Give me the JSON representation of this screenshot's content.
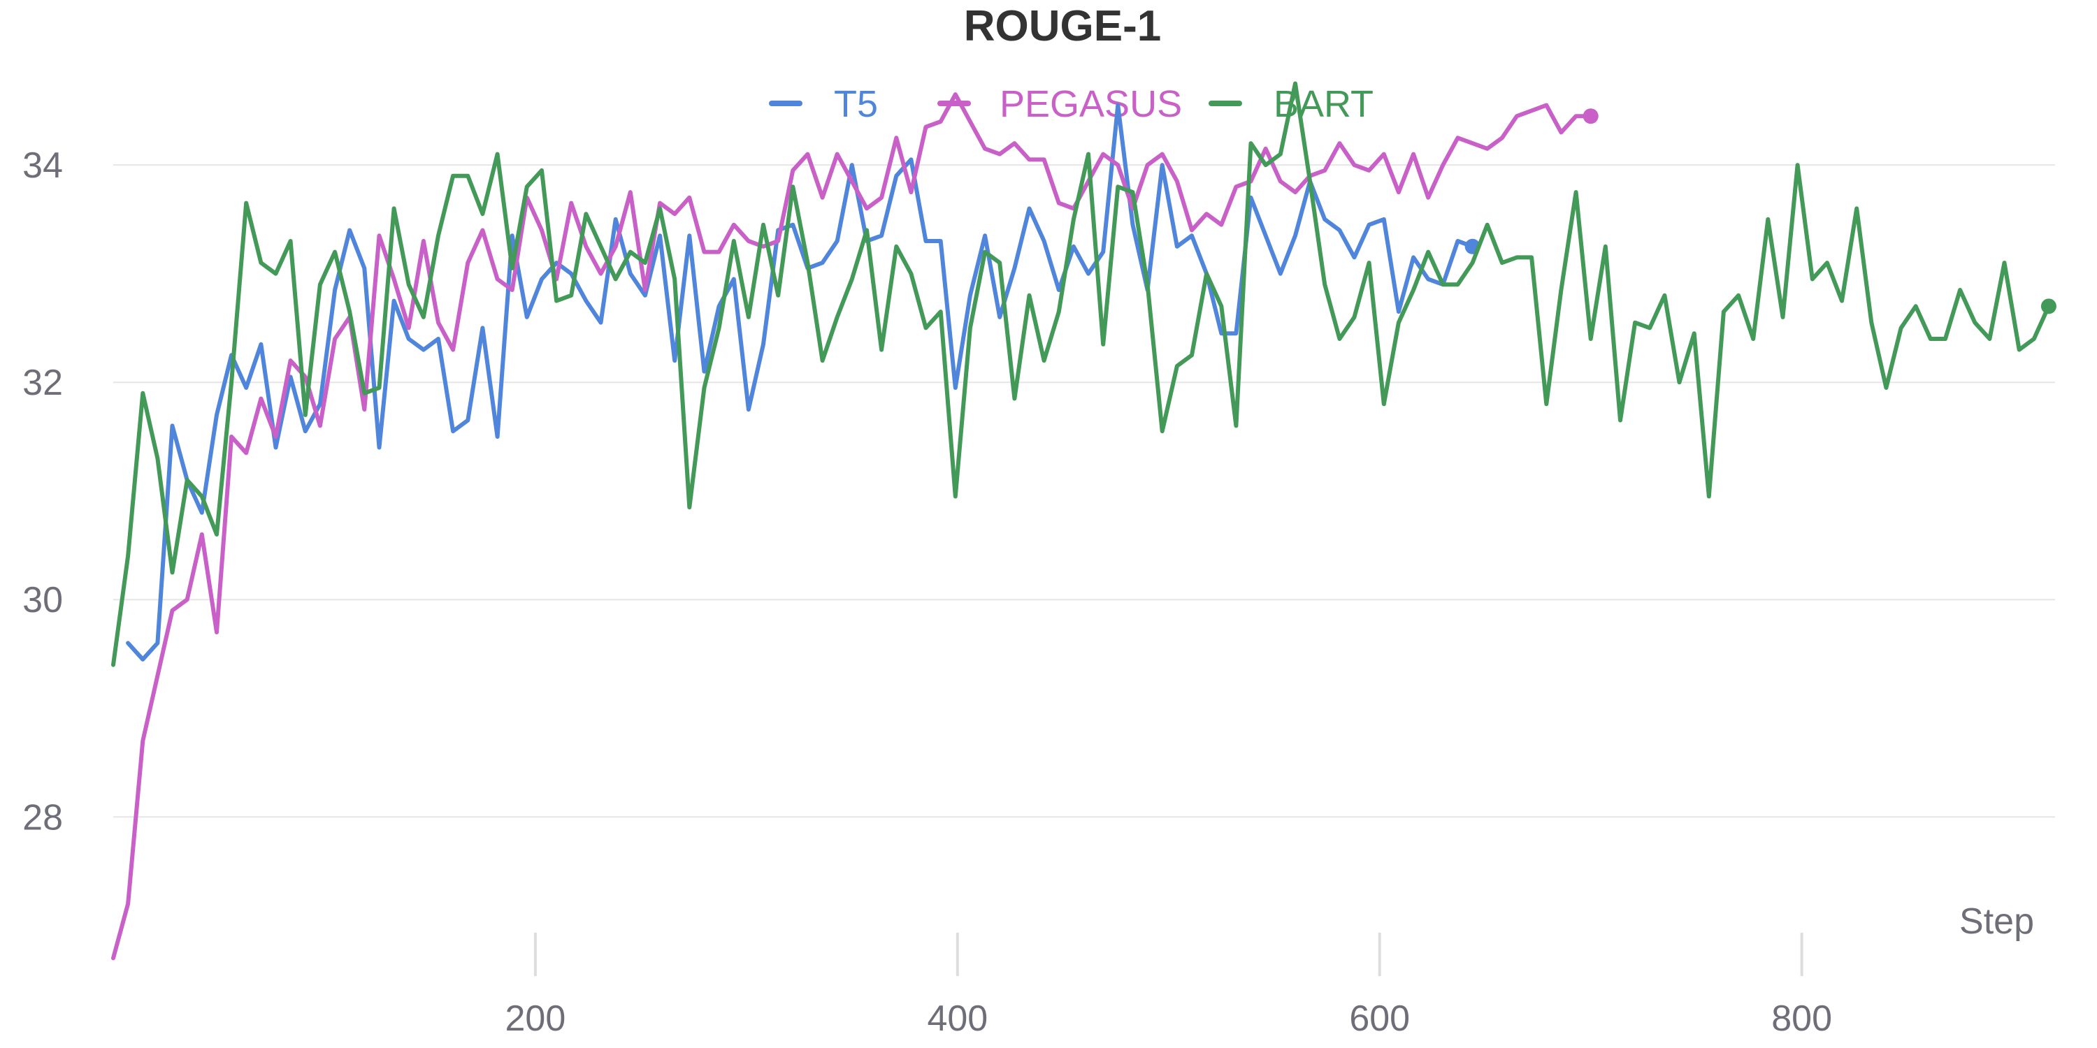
{
  "chart_data": {
    "type": "line",
    "title": "ROUGE-1",
    "xlabel": "Step",
    "ylabel": "",
    "xlim": [
      0,
      920
    ],
    "ylim": [
      26.6,
      35.3
    ],
    "xticks": [
      200,
      400,
      600,
      800
    ],
    "yticks": [
      28,
      30,
      32,
      34
    ],
    "grid": true,
    "legend_position": "top-center",
    "series": [
      {
        "name": "T5",
        "color": "#5085dc",
        "x": [
          7,
          14,
          21,
          28,
          35,
          42,
          49,
          56,
          63,
          70,
          77,
          84,
          91,
          98,
          105,
          112,
          119,
          126,
          133,
          140,
          147,
          154,
          161,
          168,
          175,
          182,
          189,
          196,
          203,
          210,
          217,
          224,
          231,
          238,
          245,
          252,
          259,
          266,
          273,
          280,
          287,
          294,
          301,
          308,
          315,
          322,
          329,
          336,
          343,
          350,
          357,
          364,
          371,
          378,
          385,
          392,
          399,
          406,
          413,
          420,
          427,
          434,
          441,
          448,
          455,
          462,
          469,
          476,
          483,
          490,
          497,
          504,
          511,
          518,
          525,
          532,
          539,
          546,
          553,
          560,
          567,
          574,
          581,
          588,
          595,
          602,
          609,
          616,
          623,
          630,
          637,
          644
        ],
        "y": [
          29.6,
          29.45,
          29.6,
          31.6,
          31.1,
          30.8,
          31.7,
          32.25,
          31.95,
          32.35,
          31.4,
          32.05,
          31.55,
          31.8,
          32.85,
          33.4,
          33.05,
          31.4,
          32.75,
          32.4,
          32.3,
          32.4,
          31.55,
          31.65,
          32.5,
          31.5,
          33.35,
          32.6,
          32.95,
          33.1,
          33.0,
          32.75,
          32.55,
          33.5,
          33.0,
          32.8,
          33.35,
          32.2,
          33.35,
          32.1,
          32.7,
          32.95,
          31.75,
          32.35,
          33.4,
          33.45,
          33.05,
          33.1,
          33.3,
          34.0,
          33.3,
          33.35,
          33.9,
          34.05,
          33.3,
          33.3,
          31.95,
          32.8,
          33.35,
          32.6,
          33.05,
          33.6,
          33.3,
          32.85,
          33.25,
          33.0,
          33.2,
          34.55,
          33.45,
          32.85,
          34.0,
          33.25,
          33.35,
          33.0,
          32.45,
          32.45,
          33.7,
          33.35,
          33.0,
          33.35,
          33.85,
          33.5,
          33.4,
          33.15,
          33.45,
          33.5,
          32.65,
          33.15,
          32.95,
          32.9,
          33.3,
          33.25
        ]
      },
      {
        "name": "PEGASUS",
        "color": "#c860c8",
        "x": [
          0,
          7,
          14,
          21,
          28,
          35,
          42,
          49,
          56,
          63,
          70,
          77,
          84,
          91,
          98,
          105,
          112,
          119,
          126,
          133,
          140,
          147,
          154,
          161,
          168,
          175,
          182,
          189,
          196,
          203,
          210,
          217,
          224,
          231,
          238,
          245,
          252,
          259,
          266,
          273,
          280,
          287,
          294,
          301,
          308,
          315,
          322,
          329,
          336,
          343,
          350,
          357,
          364,
          371,
          378,
          385,
          392,
          399,
          406,
          413,
          420,
          427,
          434,
          441,
          448,
          455,
          462,
          469,
          476,
          483,
          490,
          497,
          504,
          511,
          518,
          525,
          532,
          539,
          546,
          553,
          560,
          567,
          574,
          581,
          588,
          595,
          602,
          609,
          616,
          623,
          630,
          637,
          644,
          651,
          658,
          665,
          672,
          679,
          686,
          693,
          700
        ],
        "y": [
          26.7,
          27.2,
          28.7,
          29.3,
          29.9,
          30.0,
          30.6,
          29.7,
          31.5,
          31.35,
          31.85,
          31.5,
          32.2,
          32.05,
          31.6,
          32.4,
          32.6,
          31.75,
          33.35,
          32.95,
          32.5,
          33.3,
          32.55,
          32.3,
          33.1,
          33.4,
          32.95,
          32.85,
          33.7,
          33.4,
          32.95,
          33.65,
          33.25,
          33.0,
          33.25,
          33.75,
          32.85,
          33.65,
          33.55,
          33.7,
          33.2,
          33.2,
          33.45,
          33.3,
          33.25,
          33.3,
          33.95,
          34.1,
          33.7,
          34.1,
          33.85,
          33.6,
          33.7,
          34.25,
          33.75,
          34.35,
          34.4,
          34.65,
          34.4,
          34.15,
          34.1,
          34.2,
          34.05,
          34.05,
          33.65,
          33.6,
          33.85,
          34.1,
          34.0,
          33.6,
          34.0,
          34.1,
          33.85,
          33.4,
          33.55,
          33.45,
          33.8,
          33.85,
          34.15,
          33.85,
          33.75,
          33.9,
          33.95,
          34.2,
          34.0,
          33.95,
          34.1,
          33.75,
          34.1,
          33.7,
          34.0,
          34.25,
          34.2,
          34.15,
          34.25,
          34.45,
          34.5,
          34.55,
          34.3,
          34.45,
          34.45
        ]
      },
      {
        "name": "BART",
        "color": "#439a58",
        "x": [
          0,
          7,
          14,
          21,
          28,
          35,
          42,
          49,
          56,
          63,
          70,
          77,
          84,
          91,
          98,
          105,
          112,
          119,
          126,
          133,
          140,
          147,
          154,
          161,
          168,
          175,
          182,
          189,
          196,
          203,
          210,
          217,
          224,
          231,
          238,
          245,
          252,
          259,
          266,
          273,
          280,
          287,
          294,
          301,
          308,
          315,
          322,
          329,
          336,
          343,
          350,
          357,
          364,
          371,
          378,
          385,
          392,
          399,
          406,
          413,
          420,
          427,
          434,
          441,
          448,
          455,
          462,
          469,
          476,
          483,
          490,
          497,
          504,
          511,
          518,
          525,
          532,
          539,
          546,
          553,
          560,
          567,
          574,
          581,
          588,
          595,
          602,
          609,
          616,
          623,
          630,
          637,
          644,
          651,
          658,
          665,
          672,
          679,
          686,
          693,
          700,
          707,
          714,
          721,
          728,
          735,
          742,
          749,
          756,
          763,
          770,
          777,
          784,
          791,
          798,
          805,
          812,
          819,
          826,
          833,
          840,
          847,
          854,
          861,
          868,
          875,
          882,
          889,
          896,
          903,
          910,
          917
        ],
        "y": [
          29.4,
          30.4,
          31.9,
          31.3,
          30.25,
          31.1,
          30.95,
          30.6,
          32.0,
          33.65,
          33.1,
          33.0,
          33.3,
          31.7,
          32.9,
          33.2,
          32.65,
          31.9,
          31.95,
          33.6,
          32.9,
          32.6,
          33.35,
          33.9,
          33.9,
          33.55,
          34.1,
          33.05,
          33.8,
          33.95,
          32.75,
          32.8,
          33.55,
          33.25,
          32.95,
          33.2,
          33.1,
          33.6,
          32.95,
          30.85,
          31.95,
          32.5,
          33.3,
          32.6,
          33.45,
          32.8,
          33.8,
          33.1,
          32.2,
          32.6,
          32.95,
          33.4,
          32.3,
          33.25,
          33.0,
          32.5,
          32.65,
          30.95,
          32.5,
          33.2,
          33.1,
          31.85,
          32.8,
          32.2,
          32.65,
          33.5,
          34.1,
          32.35,
          33.8,
          33.75,
          32.9,
          31.55,
          32.15,
          32.25,
          33.0,
          32.7,
          31.6,
          34.2,
          34.0,
          34.1,
          34.75,
          33.85,
          32.9,
          32.4,
          32.6,
          33.1,
          31.8,
          32.55,
          32.85,
          33.2,
          32.9,
          32.9,
          33.1,
          33.45,
          33.1,
          33.15,
          33.15,
          31.8,
          32.85,
          33.75,
          32.4,
          33.25,
          31.65,
          32.55,
          32.5,
          32.8,
          32.0,
          32.45,
          30.95,
          32.65,
          32.8,
          32.4,
          33.5,
          32.6,
          34.0,
          32.95,
          33.1,
          32.75,
          33.6,
          32.55,
          31.95,
          32.5,
          32.7,
          32.4,
          32.4,
          32.85,
          32.55,
          32.4,
          33.1,
          32.3,
          32.4,
          32.7
        ]
      }
    ]
  }
}
